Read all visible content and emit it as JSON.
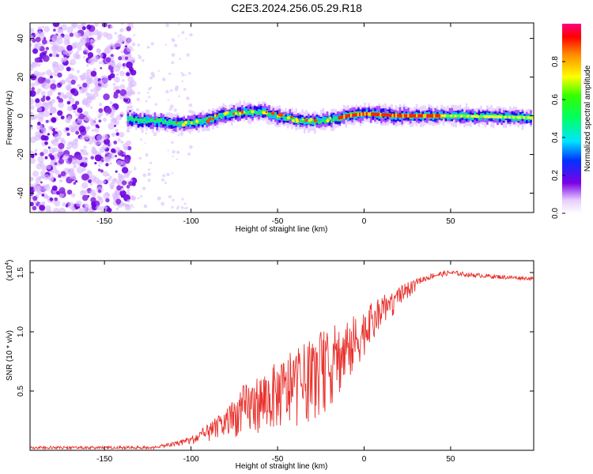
{
  "title": "C2E3.2024.256.05.29.R18",
  "chart_data": [
    {
      "type": "heatmap",
      "xlabel": "Height of straight line (km)",
      "ylabel": "Frequency (Hz)",
      "xlim": [
        -193,
        98
      ],
      "ylim": [
        -50,
        48
      ],
      "xticks": [
        -150,
        -100,
        -50,
        0,
        50
      ],
      "yticks": [
        -40,
        -20,
        0,
        20,
        40
      ],
      "colorbar": {
        "label": "Normalized spectral amplitude",
        "range": [
          0,
          1
        ],
        "ticks": [
          0.0,
          0.2,
          0.4,
          0.6,
          0.8
        ],
        "tick_labels": [
          "0.0",
          "0.2",
          "0.4",
          "0.6",
          "0.8"
        ]
      },
      "ridge_center_hz": [
        [
          -137,
          -2
        ],
        [
          -120,
          -3
        ],
        [
          -105,
          -4
        ],
        [
          -90,
          -2
        ],
        [
          -80,
          1
        ],
        [
          -70,
          2
        ],
        [
          -60,
          2
        ],
        [
          -50,
          0
        ],
        [
          -40,
          -2
        ],
        [
          -30,
          -3
        ],
        [
          -20,
          -2
        ],
        [
          -10,
          0
        ],
        [
          0,
          1
        ],
        [
          20,
          0
        ],
        [
          50,
          0
        ],
        [
          95,
          -1
        ]
      ]
    },
    {
      "type": "line",
      "xlabel": "Height of straight line (km)",
      "ylabel": "SNR (10 * v/v)",
      "y_multiplier": "(x10",
      "y_multiplier_exp": "4",
      "y_multiplier_close": ")",
      "xlim": [
        -193,
        98
      ],
      "ylim": [
        0,
        1.6
      ],
      "xticks": [
        -150,
        -100,
        -50,
        0,
        50
      ],
      "yticks": [
        0.5,
        1.0,
        1.5
      ],
      "ytick_labels": [
        "0.5",
        "1.0",
        "1.5"
      ],
      "color": "#e8322d",
      "envelope": [
        [
          -193,
          0.02
        ],
        [
          -140,
          0.02
        ],
        [
          -120,
          0.04
        ],
        [
          -110,
          0.07
        ],
        [
          -100,
          0.12
        ],
        [
          -90,
          0.22
        ],
        [
          -80,
          0.35
        ],
        [
          -70,
          0.55
        ],
        [
          -60,
          0.65
        ],
        [
          -50,
          0.75
        ],
        [
          -40,
          0.85
        ],
        [
          -30,
          0.95
        ],
        [
          -20,
          1.05
        ],
        [
          -10,
          1.1
        ],
        [
          0,
          1.2
        ],
        [
          10,
          1.3
        ],
        [
          20,
          1.38
        ],
        [
          30,
          1.45
        ],
        [
          40,
          1.5
        ],
        [
          50,
          1.52
        ],
        [
          60,
          1.5
        ],
        [
          70,
          1.49
        ],
        [
          80,
          1.48
        ],
        [
          90,
          1.47
        ],
        [
          98,
          1.46
        ]
      ],
      "base": [
        [
          -193,
          0.01
        ],
        [
          -140,
          0.01
        ],
        [
          -120,
          0.02
        ],
        [
          -110,
          0.03
        ],
        [
          -100,
          0.05
        ],
        [
          -90,
          0.07
        ],
        [
          -80,
          0.1
        ],
        [
          -70,
          0.12
        ],
        [
          -60,
          0.15
        ],
        [
          -50,
          0.18
        ],
        [
          -40,
          0.2
        ],
        [
          -30,
          0.25
        ],
        [
          -20,
          0.35
        ],
        [
          -10,
          0.55
        ],
        [
          0,
          0.8
        ],
        [
          10,
          1.0
        ],
        [
          20,
          1.2
        ],
        [
          30,
          1.35
        ],
        [
          40,
          1.42
        ],
        [
          50,
          1.45
        ],
        [
          60,
          1.44
        ],
        [
          70,
          1.43
        ],
        [
          80,
          1.42
        ],
        [
          90,
          1.42
        ],
        [
          98,
          1.42
        ]
      ]
    }
  ]
}
